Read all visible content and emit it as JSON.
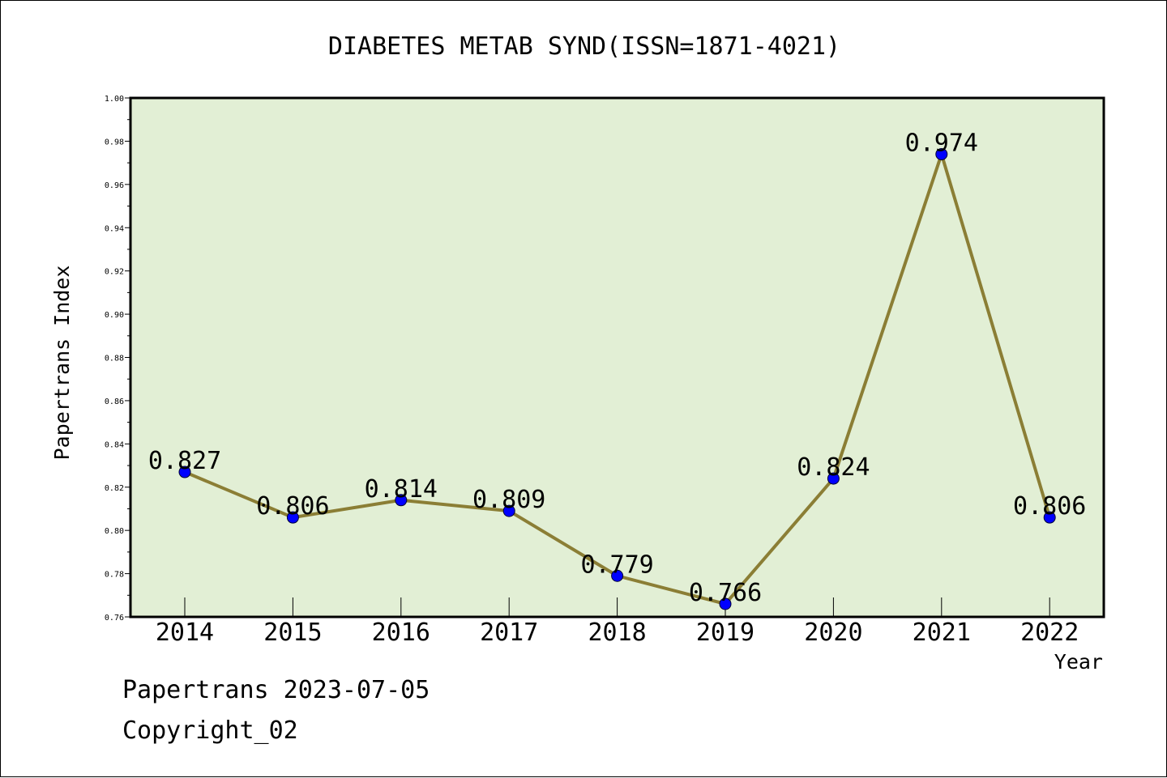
{
  "chart_data": {
    "type": "line",
    "title": "DIABETES METAB SYND(ISSN=1871-4021)",
    "xlabel": "Year",
    "ylabel": "Papertrans Index",
    "categories": [
      "2014",
      "2015",
      "2016",
      "2017",
      "2018",
      "2019",
      "2020",
      "2021",
      "2022"
    ],
    "series": [
      {
        "values": [
          0.827,
          0.806,
          0.814,
          0.809,
          0.779,
          0.766,
          0.824,
          0.974,
          0.806
        ],
        "labels": [
          "0.827",
          "0.806",
          "0.814",
          "0.809",
          "0.779",
          "0.766",
          "0.824",
          "0.974",
          "0.806"
        ]
      }
    ],
    "ylim": [
      0.76,
      1.0
    ],
    "yticks": [
      "0.76",
      "0.78",
      "0.80",
      "0.82",
      "0.84",
      "0.86",
      "0.88",
      "0.90",
      "0.92",
      "0.94",
      "0.96",
      "0.98",
      "1.00"
    ],
    "grid": false,
    "colors": {
      "plot_background": "#e2efd5",
      "line": "#8b7e35",
      "marker": "#0000ff"
    }
  },
  "footer": {
    "source": "Papertrans 2023-07-05",
    "copyright": "Copyright_02"
  }
}
